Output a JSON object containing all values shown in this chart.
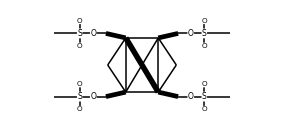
{
  "bg_color": "#ffffff",
  "line_color": "#000000",
  "lw": 1.1,
  "bold_lw": 4.0,
  "figsize": [
    2.84,
    1.3
  ],
  "dpi": 100,
  "xlim": [
    -1.55,
    1.55
  ],
  "ylim": [
    -0.72,
    0.72
  ]
}
